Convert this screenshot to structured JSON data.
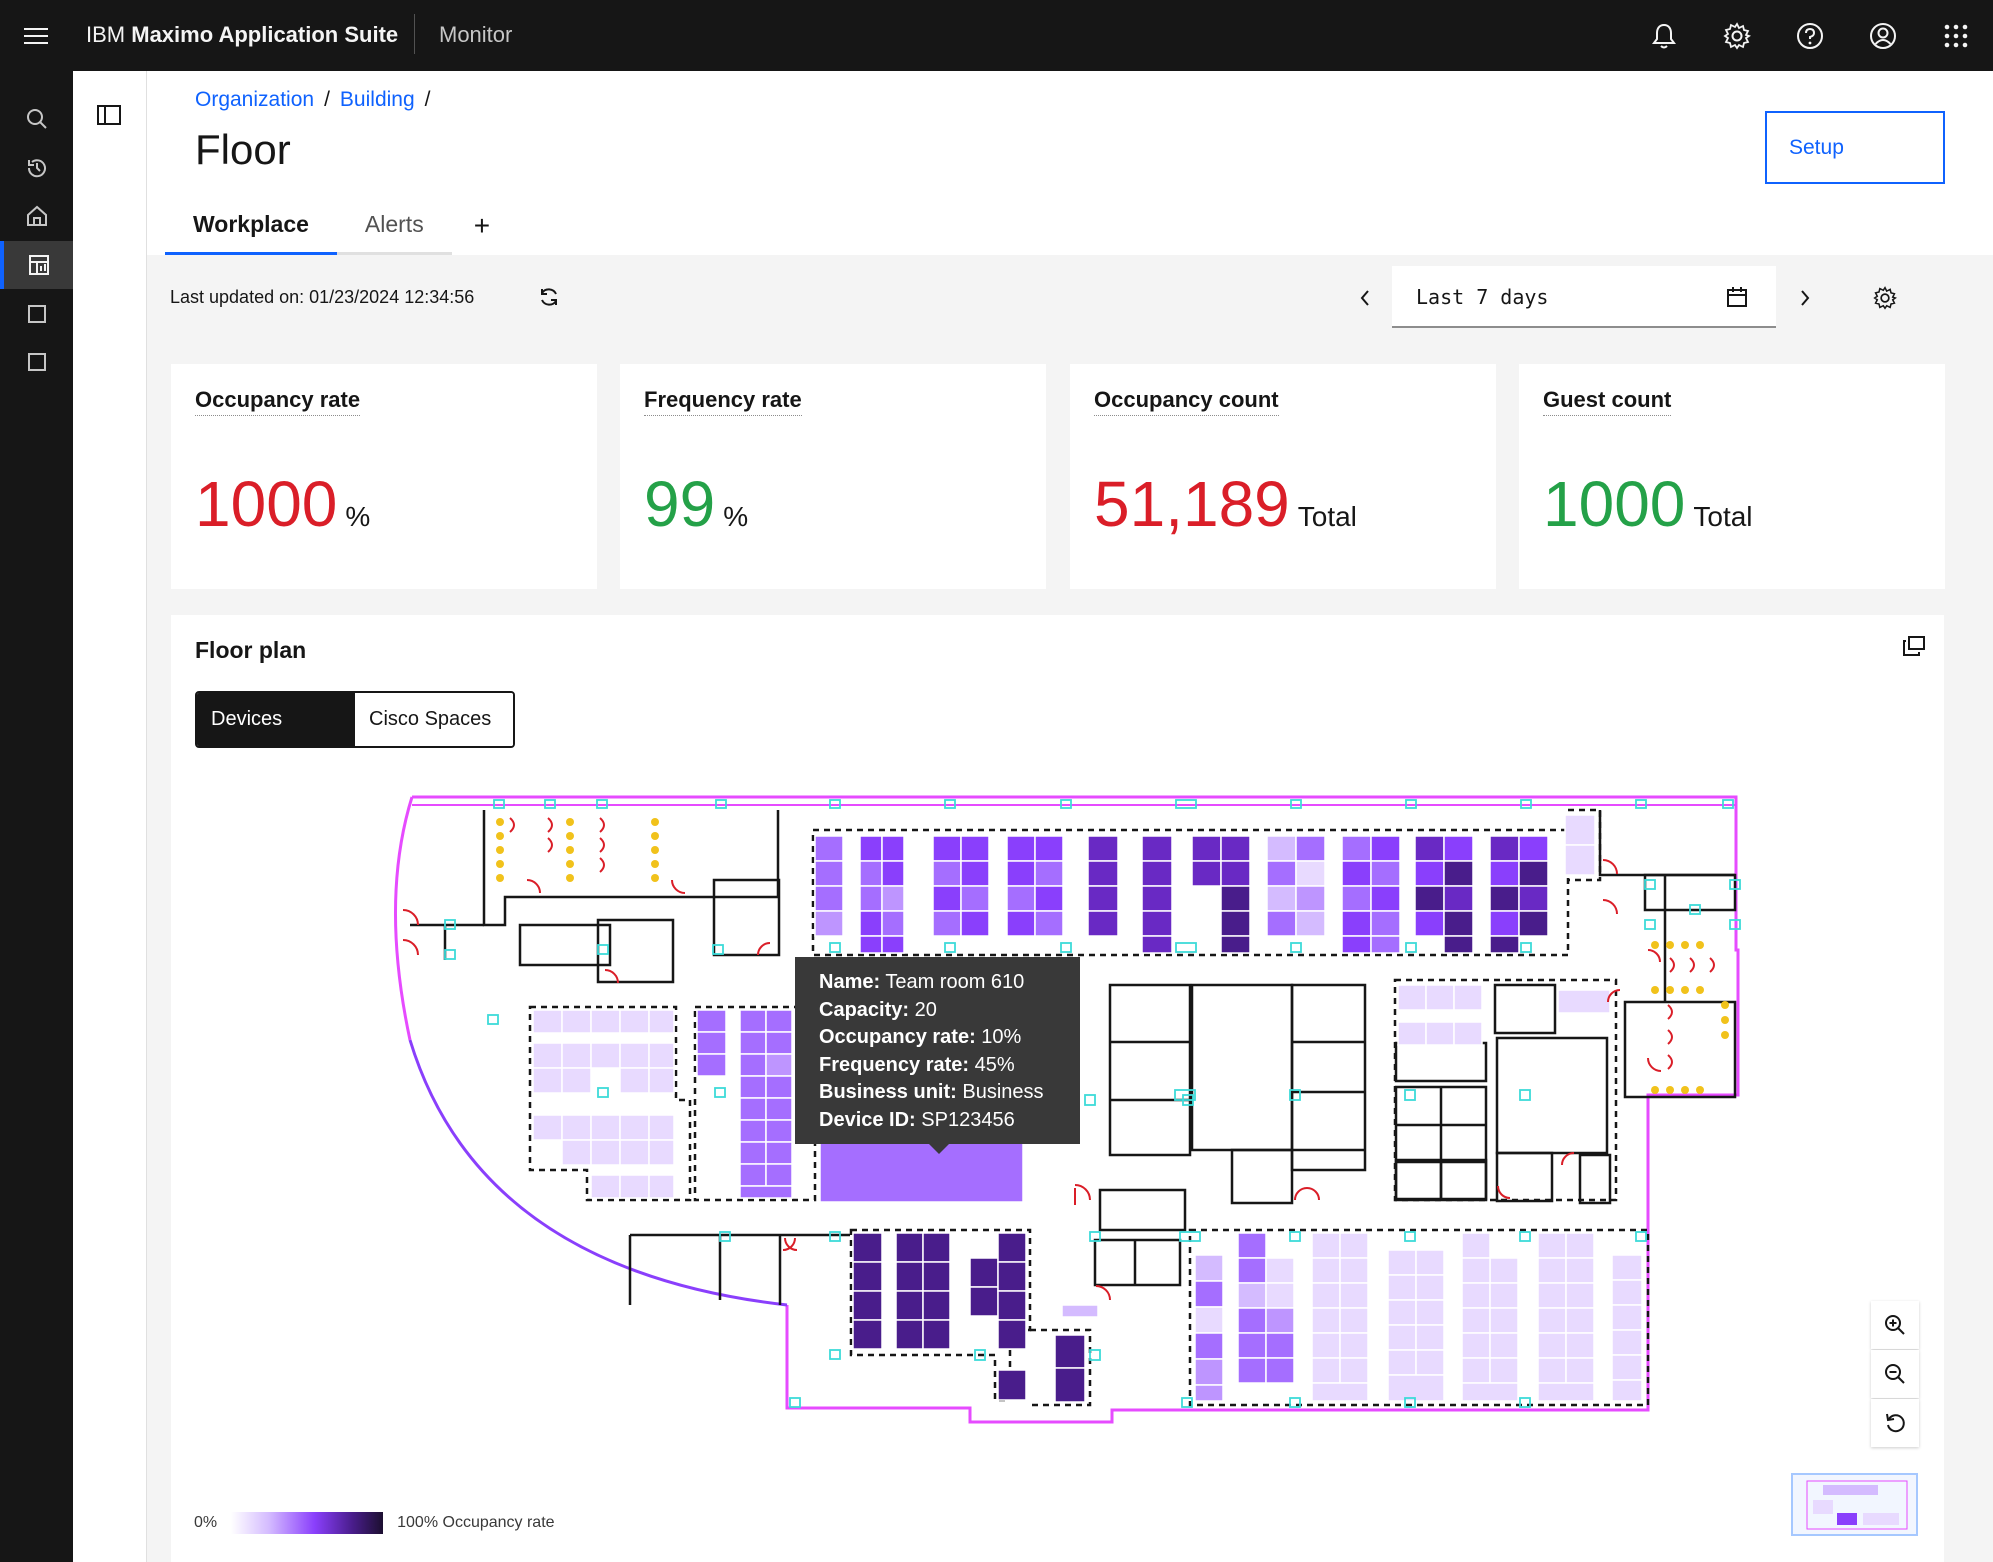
{
  "topbar": {
    "brand_prefix": "IBM",
    "brand_name": "Maximo Application Suite",
    "module": "Monitor",
    "icons": [
      "menu-icon",
      "notification-icon",
      "settings-icon",
      "help-icon",
      "user-icon",
      "app-switcher-icon"
    ]
  },
  "leftrail": {
    "icons": [
      "search-icon",
      "recent-icon",
      "home-icon",
      "dashboard-icon",
      "square-icon",
      "square-icon"
    ],
    "active_index": 3
  },
  "breadcrumb": {
    "items": [
      "Organization",
      "Building"
    ]
  },
  "page": {
    "title": "Floor",
    "setup_label": "Setup"
  },
  "tabs": {
    "workplace": "Workplace",
    "alerts": "Alerts",
    "add": "+"
  },
  "toolbar": {
    "last_updated": "Last updated on: 01/23/2024 12:34:56",
    "date_range": "Last 7 days"
  },
  "kpis": [
    {
      "label": "Occupancy rate",
      "value": "1000",
      "unit": "%",
      "color": "#da1e28"
    },
    {
      "label": "Frequency rate",
      "value": "99",
      "unit": "%",
      "color": "#24a148"
    },
    {
      "label": "Occupancy count",
      "value": "51,189",
      "unit": "Total",
      "color": "#da1e28"
    },
    {
      "label": "Guest count",
      "value": "1000",
      "unit": "Total",
      "color": "#24a148"
    }
  ],
  "floorplan": {
    "title": "Floor plan",
    "segments": {
      "devices": "Devices",
      "cisco": "Cisco Spaces"
    },
    "tooltip": {
      "name_label": "Name:",
      "name": "Team room 610",
      "capacity_label": "Capacity:",
      "capacity": "20",
      "occ_label": "Occupancy rate:",
      "occ": "10%",
      "freq_label": "Frequency rate:",
      "freq": "45%",
      "bu_label": "Business unit:",
      "bu": "Business",
      "device_label": "Device ID:",
      "device": "SP123456"
    },
    "legend": {
      "min": "0%",
      "max": "100% Occupancy rate"
    },
    "colors": {
      "wall": "#161616",
      "outline": "#e64bff",
      "sensor": "#3ddbd9",
      "door": "#da1e28",
      "chair": "#f1c21b"
    }
  }
}
